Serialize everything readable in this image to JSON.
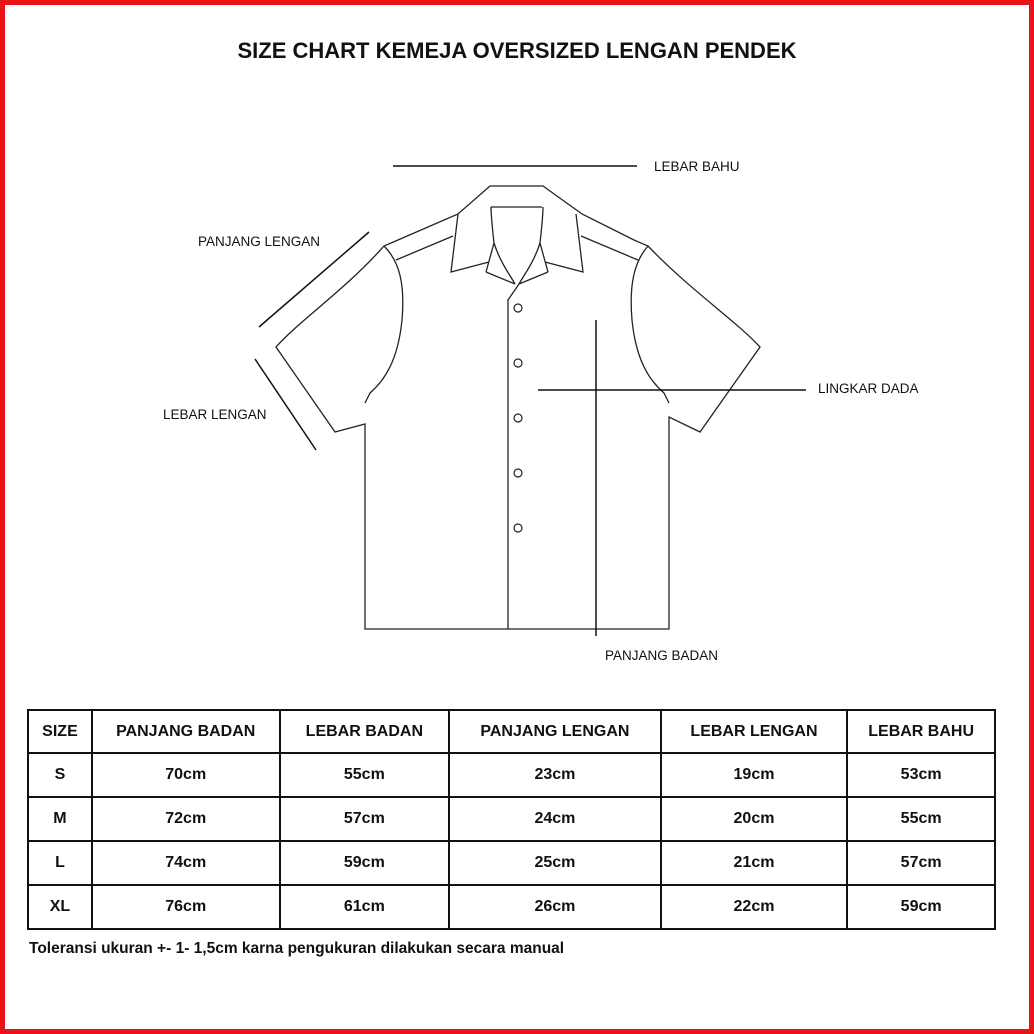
{
  "title": "SIZE CHART KEMEJA OVERSIZED LENGAN PENDEK",
  "border_color": "#e8141a",
  "diagram_labels": {
    "lebar_bahu": "LEBAR BAHU",
    "panjang_lengan": "PANJANG LENGAN",
    "lebar_lengan": "LEBAR LENGAN",
    "lingkar_dada": "LINGKAR DADA",
    "panjang_badan": "PANJANG BADAN"
  },
  "table": {
    "headers": [
      "SIZE",
      "PANJANG BADAN",
      "LEBAR BADAN",
      "PANJANG LENGAN",
      "LEBAR LENGAN",
      "LEBAR BAHU"
    ],
    "rows": [
      [
        "S",
        "70cm",
        "55cm",
        "23cm",
        "19cm",
        "53cm"
      ],
      [
        "M",
        "72cm",
        "57cm",
        "24cm",
        "20cm",
        "55cm"
      ],
      [
        "L",
        "74cm",
        "59cm",
        "25cm",
        "21cm",
        "57cm"
      ],
      [
        "XL",
        "76cm",
        "61cm",
        "26cm",
        "22cm",
        "59cm"
      ]
    ]
  },
  "note": "Toleransi ukuran +- 1- 1,5cm karna pengukuran dilakukan secara manual"
}
